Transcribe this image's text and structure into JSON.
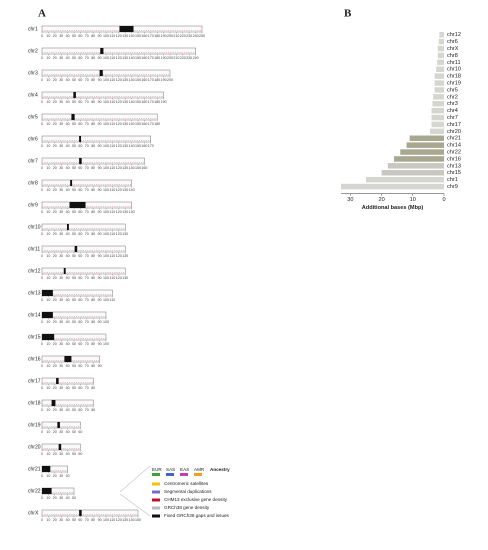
{
  "panel_a": {
    "label": "A",
    "chromosomes": [
      {
        "name": "chr1",
        "ticks": [
          0,
          10,
          20,
          30,
          40,
          50,
          60,
          70,
          80,
          90,
          100,
          110,
          120,
          130,
          140,
          150,
          160,
          170,
          180,
          190,
          200,
          210,
          220,
          230,
          240,
          250
        ],
        "centromere": [
          121,
          143
        ]
      },
      {
        "name": "chr2",
        "ticks": [
          0,
          10,
          20,
          30,
          40,
          50,
          60,
          70,
          80,
          90,
          100,
          110,
          120,
          130,
          140,
          150,
          160,
          170,
          180,
          190,
          200,
          210,
          220,
          230,
          240
        ],
        "centromere": [
          91,
          96
        ]
      },
      {
        "name": "chr3",
        "ticks": [
          0,
          10,
          20,
          30,
          40,
          50,
          60,
          70,
          80,
          90,
          100,
          110,
          120,
          130,
          140,
          150,
          160,
          170,
          180,
          190,
          200
        ],
        "centromere": [
          90,
          95
        ]
      },
      {
        "name": "chr4",
        "ticks": [
          0,
          10,
          20,
          30,
          40,
          50,
          60,
          70,
          80,
          90,
          100,
          110,
          120,
          130,
          140,
          150,
          160,
          170,
          180,
          190
        ],
        "centromere": [
          49,
          53
        ]
      },
      {
        "name": "chr5",
        "ticks": [
          0,
          10,
          20,
          30,
          40,
          50,
          60,
          70,
          80,
          90,
          100,
          110,
          120,
          130,
          140,
          150,
          160,
          170,
          180
        ],
        "centromere": [
          46,
          51
        ]
      },
      {
        "name": "chr6",
        "ticks": [
          0,
          10,
          20,
          30,
          40,
          50,
          60,
          70,
          80,
          90,
          100,
          110,
          120,
          130,
          140,
          150,
          160,
          170
        ],
        "centromere": [
          58,
          61
        ]
      },
      {
        "name": "chr7",
        "ticks": [
          0,
          10,
          20,
          30,
          40,
          50,
          60,
          70,
          80,
          90,
          100,
          110,
          120,
          130,
          140,
          150,
          160
        ],
        "centromere": [
          58,
          62
        ]
      },
      {
        "name": "chr8",
        "ticks": [
          0,
          10,
          20,
          30,
          40,
          50,
          60,
          70,
          80,
          90,
          100,
          110,
          120,
          130,
          140
        ],
        "centromere": [
          44,
          47
        ]
      },
      {
        "name": "chr9",
        "ticks": [
          0,
          10,
          20,
          30,
          40,
          50,
          60,
          70,
          80,
          90,
          100,
          110,
          120,
          130,
          140
        ],
        "centromere": [
          43,
          68
        ]
      },
      {
        "name": "chr10",
        "ticks": [
          0,
          10,
          20,
          30,
          40,
          50,
          60,
          70,
          80,
          90,
          100,
          110,
          120,
          130
        ],
        "centromere": [
          39,
          42
        ]
      },
      {
        "name": "chr11",
        "ticks": [
          0,
          10,
          20,
          30,
          40,
          50,
          60,
          70,
          80,
          90,
          100,
          110,
          120,
          130
        ],
        "centromere": [
          51,
          55
        ]
      },
      {
        "name": "chr12",
        "ticks": [
          0,
          10,
          20,
          30,
          40,
          50,
          60,
          70,
          80,
          90,
          100,
          110,
          120,
          130
        ],
        "centromere": [
          34,
          37
        ]
      },
      {
        "name": "chr13",
        "ticks": [
          0,
          10,
          20,
          30,
          40,
          50,
          60,
          70,
          80,
          90,
          100,
          110
        ],
        "centromere": [
          0,
          17
        ]
      },
      {
        "name": "chr14",
        "ticks": [
          0,
          10,
          20,
          30,
          40,
          50,
          60,
          70,
          80,
          90,
          100
        ],
        "centromere": [
          0,
          17
        ]
      },
      {
        "name": "chr15",
        "ticks": [
          0,
          10,
          20,
          30,
          40,
          50,
          60,
          70,
          80,
          90,
          100
        ],
        "centromere": [
          0,
          19
        ]
      },
      {
        "name": "chr16",
        "ticks": [
          0,
          10,
          20,
          30,
          40,
          50,
          60,
          70,
          80,
          90
        ],
        "centromere": [
          35,
          46
        ]
      },
      {
        "name": "chr17",
        "ticks": [
          0,
          10,
          20,
          30,
          40,
          50,
          60,
          70,
          80
        ],
        "centromere": [
          22,
          26
        ]
      },
      {
        "name": "chr18",
        "ticks": [
          0,
          10,
          20,
          30,
          40,
          50,
          60,
          70,
          80
        ],
        "centromere": [
          15,
          21
        ]
      },
      {
        "name": "chr19",
        "ticks": [
          0,
          10,
          20,
          30,
          40,
          50,
          60
        ],
        "centromere": [
          24,
          28
        ]
      },
      {
        "name": "chr20",
        "ticks": [
          0,
          10,
          20,
          30,
          40,
          50,
          60
        ],
        "centromere": [
          26,
          30
        ]
      },
      {
        "name": "chr21",
        "ticks": [
          0,
          10,
          20,
          30,
          40
        ],
        "centromere": [
          0,
          13
        ]
      },
      {
        "name": "chr22",
        "ticks": [
          0,
          10,
          20,
          30,
          40,
          50
        ],
        "centromere": [
          0,
          15
        ]
      },
      {
        "name": "chrX",
        "ticks": [
          0,
          10,
          20,
          30,
          40,
          50,
          60,
          70,
          80,
          90,
          100,
          110,
          120,
          130,
          140,
          150
        ],
        "centromere": [
          58,
          62
        ]
      }
    ],
    "legend": {
      "ancestry_title": "Ancestry",
      "ancestry": [
        {
          "name": "EUR",
          "color": "#3aa33a"
        },
        {
          "name": "SAS",
          "color": "#3d66c4"
        },
        {
          "name": "EAS",
          "color": "#c43ab0"
        },
        {
          "name": "AMR",
          "color": "#f0a020"
        }
      ],
      "items": [
        {
          "name": "Centromeric satellites",
          "color": "#f2c200"
        },
        {
          "name": "Segmental duplications",
          "color": "#7070c8"
        },
        {
          "name": "CHM13 exclusive gene density",
          "color": "#c0102a"
        },
        {
          "name": "GRCh38 gene density",
          "color": "#bbbbbb"
        },
        {
          "name": "Fixed GRCh38 gaps and issues",
          "color": "#111111"
        }
      ]
    }
  },
  "chart_data": {
    "type": "bar",
    "panel_label": "B",
    "xlabel": "Additional bases (Mbp)",
    "categories": [
      "chr12",
      "chr6",
      "chrX",
      "chr8",
      "chr11",
      "chr10",
      "chr18",
      "chr19",
      "chr5",
      "chr2",
      "chr3",
      "chr4",
      "chr7",
      "chr17",
      "chr20",
      "chr21",
      "chr14",
      "chr22",
      "chr16",
      "chr13",
      "chr15",
      "chr1",
      "chr9"
    ],
    "values": [
      1.5,
      1.7,
      2,
      2,
      2.2,
      2.5,
      3,
      3,
      3,
      3.5,
      3.7,
      4,
      4,
      4,
      4.5,
      11,
      12,
      14,
      16,
      18,
      20,
      25,
      33
    ],
    "colors": [
      "#d6d6d0",
      "#d6d6d0",
      "#d6d6d0",
      "#d6d6d0",
      "#d6d6d0",
      "#d6d6d0",
      "#d6d6d0",
      "#d6d6d0",
      "#d6d6d0",
      "#d6d6d0",
      "#d6d6d0",
      "#d6d6d0",
      "#d6d6d0",
      "#d6d6d0",
      "#d6d6d0",
      "#a8a890",
      "#a8a890",
      "#a8a890",
      "#a8a890",
      "#c8c8c0",
      "#c8c8c0",
      "#d6d6d0",
      "#d6d6d0"
    ],
    "xlim": [
      0,
      33
    ],
    "x_reversed": true,
    "xticks": [
      30,
      20,
      10,
      0
    ]
  }
}
